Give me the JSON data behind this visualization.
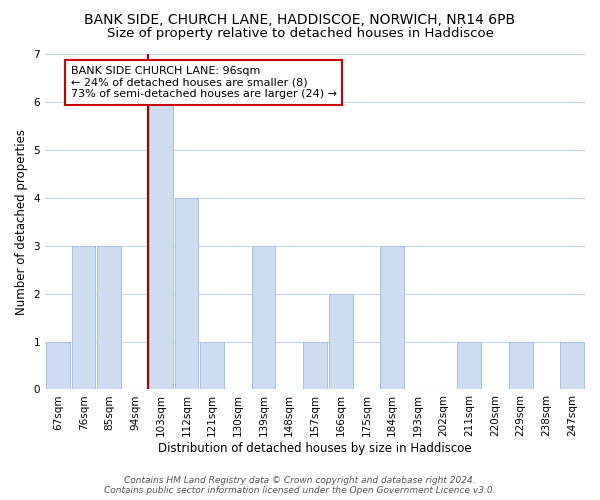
{
  "title": "BANK SIDE, CHURCH LANE, HADDISCOE, NORWICH, NR14 6PB",
  "subtitle": "Size of property relative to detached houses in Haddiscoe",
  "xlabel": "Distribution of detached houses by size in Haddiscoe",
  "ylabel": "Number of detached properties",
  "bar_labels": [
    "67sqm",
    "76sqm",
    "85sqm",
    "94sqm",
    "103sqm",
    "112sqm",
    "121sqm",
    "130sqm",
    "139sqm",
    "148sqm",
    "157sqm",
    "166sqm",
    "175sqm",
    "184sqm",
    "193sqm",
    "202sqm",
    "211sqm",
    "220sqm",
    "229sqm",
    "238sqm",
    "247sqm"
  ],
  "bar_values": [
    1,
    3,
    3,
    0,
    6,
    4,
    1,
    0,
    3,
    0,
    1,
    2,
    0,
    3,
    0,
    0,
    1,
    0,
    1,
    0,
    1
  ],
  "bar_color": "#cddcf0",
  "bar_edge_color": "#a8c0e0",
  "highlight_index": 4,
  "highlight_line_color": "#aa0000",
  "ylim": [
    0,
    7
  ],
  "yticks": [
    0,
    1,
    2,
    3,
    4,
    5,
    6,
    7
  ],
  "annotation_box_text": "BANK SIDE CHURCH LANE: 96sqm\n← 24% of detached houses are smaller (8)\n73% of semi-detached houses are larger (24) →",
  "annotation_box_facecolor": "#ffffff",
  "annotation_box_edgecolor": "#cc0000",
  "footer_text": "Contains HM Land Registry data © Crown copyright and database right 2024.\nContains public sector information licensed under the Open Government Licence v3.0.",
  "background_color": "#ffffff",
  "grid_color": "#c8d4ec",
  "title_fontsize": 10,
  "subtitle_fontsize": 9.5,
  "tick_fontsize": 7.5,
  "ylabel_fontsize": 8.5,
  "xlabel_fontsize": 8.5,
  "footer_fontsize": 6.5
}
